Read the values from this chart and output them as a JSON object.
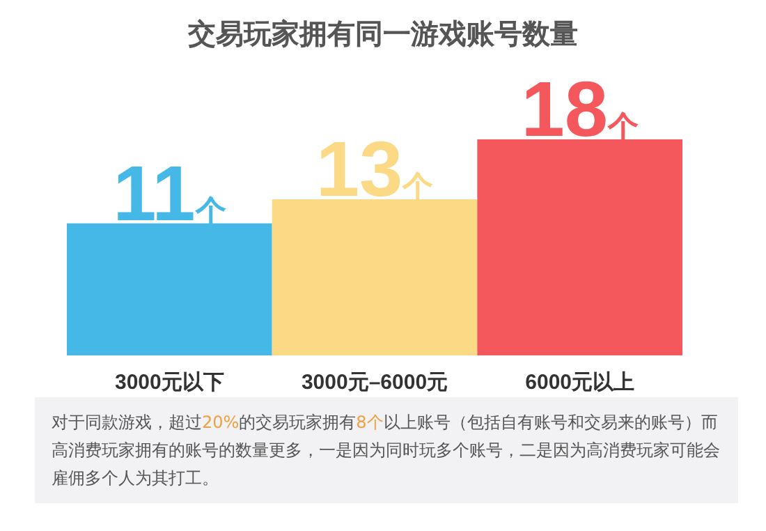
{
  "chart_data": {
    "type": "bar",
    "title": "交易玩家拥有同一游戏账号数量",
    "categories": [
      "3000元以下",
      "3000元–6000元",
      "6000元以上"
    ],
    "values": [
      11,
      13,
      18
    ],
    "colors": [
      "#45b8e8",
      "#fbd985",
      "#f4575c"
    ],
    "value_labels": [
      "11个",
      "13个",
      "18个"
    ],
    "annotations": [
      "对于同款游戏，超过20%的交易玩家拥有8个以上账号（包括自有账号和交易来的账号）而高消费玩家拥有的账号的数量更多，一是因为同时玩多个账号，二是因为高消费玩家可能会雇佣多个人为其打工。"
    ]
  }
}
